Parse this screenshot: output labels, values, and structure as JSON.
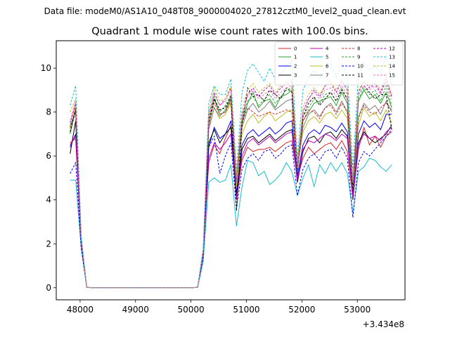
{
  "figure": {
    "suptitle": "Data file: modeM0/AS1A10_048T08_9000004020_27812cztM0_level2_quad_clean.evt"
  },
  "chart_data": {
    "type": "line",
    "title": "Quadrant 1 module wise count rates with 100.0s bins.",
    "xlabel": "",
    "ylabel": "",
    "x_offset_label": "+3.434e8",
    "xlim": [
      47570,
      53860
    ],
    "ylim": [
      -0.55,
      11.25
    ],
    "x_ticks": [
      48000,
      49000,
      50000,
      51000,
      52000,
      53000
    ],
    "y_ticks": [
      0,
      2,
      4,
      6,
      8,
      10
    ],
    "grid": false,
    "legend": {
      "placement": "top-right",
      "columns": 4
    },
    "x": [
      47820,
      47920,
      48020,
      48120,
      48220,
      48320,
      48420,
      48520,
      48620,
      48720,
      48820,
      48920,
      49020,
      49120,
      49220,
      49320,
      49420,
      49520,
      49620,
      49720,
      49820,
      49920,
      50020,
      50120,
      50220,
      50320,
      50420,
      50520,
      50620,
      50720,
      50820,
      50920,
      51020,
      51120,
      51220,
      51320,
      51420,
      51520,
      51620,
      51720,
      51820,
      51920,
      52020,
      52120,
      52220,
      52320,
      52420,
      52520,
      52620,
      52720,
      52820,
      52920,
      53020,
      53120,
      53220,
      53320,
      53420,
      53520,
      53620
    ],
    "series": [
      {
        "name": "0",
        "color": "#d62728",
        "dash": "solid",
        "values": [
          6.6,
          6.8,
          2.0,
          0.02,
          0,
          0,
          0,
          0,
          0,
          0,
          0,
          0,
          0,
          0,
          0,
          0,
          0,
          0,
          0,
          0,
          0,
          0,
          0,
          0.02,
          1.5,
          5.7,
          6.5,
          6.1,
          6.8,
          7.4,
          4.0,
          5.8,
          6.4,
          6.2,
          6.3,
          6.3,
          6.4,
          6.2,
          6.4,
          6.6,
          6.7,
          5.0,
          5.9,
          6.4,
          6.1,
          6.3,
          6.5,
          6.6,
          6.3,
          6.7,
          6.2,
          4.1,
          6.3,
          7.3,
          6.5,
          6.9,
          6.4,
          6.9,
          7.1
        ]
      },
      {
        "name": "1",
        "color": "#2ca02c",
        "dash": "solid",
        "values": [
          7.0,
          8.1,
          2.2,
          0.02,
          0,
          0,
          0,
          0,
          0,
          0,
          0,
          0,
          0,
          0,
          0,
          0,
          0,
          0,
          0,
          0,
          0,
          0,
          0,
          0.02,
          1.7,
          7.4,
          8.6,
          7.9,
          8.0,
          8.6,
          4.7,
          7.5,
          8.4,
          8.9,
          8.2,
          8.5,
          8.6,
          8.2,
          8.7,
          8.8,
          9.0,
          5.3,
          7.6,
          8.0,
          8.4,
          8.5,
          8.6,
          8.7,
          8.3,
          8.9,
          8.4,
          4.6,
          8.5,
          9.0,
          8.6,
          8.8,
          8.4,
          8.9,
          8.2
        ]
      },
      {
        "name": "2",
        "color": "#0000ff",
        "dash": "solid",
        "values": [
          6.4,
          7.0,
          2.0,
          0.02,
          0,
          0,
          0,
          0,
          0,
          0,
          0,
          0,
          0,
          0,
          0,
          0,
          0,
          0,
          0,
          0,
          0,
          0,
          0,
          0.02,
          1.6,
          6.4,
          7.3,
          6.8,
          7.0,
          7.6,
          4.3,
          6.5,
          7.0,
          7.2,
          6.9,
          7.1,
          7.3,
          7.0,
          7.2,
          7.5,
          7.6,
          5.1,
          6.5,
          7.0,
          7.2,
          7.0,
          7.4,
          7.3,
          7.1,
          7.5,
          7.1,
          4.2,
          7.0,
          7.6,
          7.3,
          7.5,
          7.2,
          7.9,
          7.9
        ]
      },
      {
        "name": "3",
        "color": "#000000",
        "dash": "solid",
        "values": [
          6.1,
          7.6,
          2.0,
          0.02,
          0,
          0,
          0,
          0,
          0,
          0,
          0,
          0,
          0,
          0,
          0,
          0,
          0,
          0,
          0,
          0,
          0,
          0,
          0,
          0.02,
          1.5,
          6.6,
          7.2,
          6.6,
          7.0,
          7.3,
          4.2,
          6.3,
          6.8,
          6.9,
          6.6,
          6.8,
          7.0,
          6.7,
          6.9,
          7.1,
          7.2,
          4.8,
          6.2,
          6.8,
          6.9,
          6.6,
          7.0,
          7.1,
          6.8,
          7.2,
          6.9,
          4.0,
          6.6,
          7.1,
          6.8,
          6.6,
          6.8,
          7.0,
          7.4
        ]
      },
      {
        "name": "4",
        "color": "#bf00bf",
        "dash": "solid",
        "values": [
          6.5,
          6.9,
          2.0,
          0.02,
          0,
          0,
          0,
          0,
          0,
          0,
          0,
          0,
          0,
          0,
          0,
          0,
          0,
          0,
          0,
          0,
          0,
          0,
          0,
          0.02,
          1.5,
          5.9,
          6.6,
          6.3,
          6.6,
          7.0,
          4.1,
          6.0,
          6.6,
          6.8,
          6.5,
          6.7,
          6.9,
          6.6,
          6.8,
          7.0,
          7.1,
          4.9,
          6.3,
          6.7,
          6.6,
          6.8,
          7.0,
          6.9,
          6.7,
          7.0,
          6.8,
          4.1,
          6.5,
          7.0,
          6.8,
          6.9,
          6.7,
          7.1,
          7.3
        ]
      },
      {
        "name": "5",
        "color": "#17becf",
        "dash": "solid",
        "values": [
          4.9,
          4.9,
          1.8,
          0.02,
          0,
          0,
          0,
          0,
          0,
          0,
          0,
          0,
          0,
          0,
          0,
          0,
          0,
          0,
          0,
          0,
          0,
          0,
          0,
          0.02,
          1.2,
          4.8,
          5.0,
          4.8,
          4.9,
          5.6,
          2.8,
          4.6,
          5.8,
          5.7,
          5.1,
          5.3,
          4.7,
          4.9,
          5.2,
          5.7,
          5.3,
          4.2,
          5.0,
          5.6,
          4.6,
          5.6,
          5.2,
          5.7,
          5.3,
          5.7,
          5.2,
          3.4,
          5.3,
          5.5,
          5.9,
          5.8,
          5.5,
          5.3,
          5.6
        ]
      },
      {
        "name": "6",
        "color": "#bcbd22",
        "dash": "solid",
        "values": [
          7.2,
          8.3,
          2.1,
          0.02,
          0,
          0,
          0,
          0,
          0,
          0,
          0,
          0,
          0,
          0,
          0,
          0,
          0,
          0,
          0,
          0,
          0,
          0,
          0,
          0.02,
          1.6,
          7.3,
          8.2,
          7.7,
          7.9,
          8.4,
          4.6,
          7.0,
          7.6,
          7.9,
          7.5,
          7.8,
          8.0,
          7.6,
          7.8,
          8.0,
          8.1,
          5.4,
          7.1,
          7.6,
          7.8,
          7.5,
          7.9,
          8.0,
          7.7,
          8.1,
          7.7,
          4.4,
          7.4,
          8.2,
          7.8,
          8.0,
          7.6,
          8.1,
          7.5
        ]
      },
      {
        "name": "7",
        "color": "#7f7f7f",
        "dash": "solid",
        "values": [
          7.3,
          8.0,
          2.1,
          0.02,
          0,
          0,
          0,
          0,
          0,
          0,
          0,
          0,
          0,
          0,
          0,
          0,
          0,
          0,
          0,
          0,
          0,
          0,
          0,
          0.02,
          1.6,
          7.2,
          8.2,
          7.8,
          8.1,
          8.7,
          4.8,
          7.3,
          8.1,
          8.4,
          8.0,
          8.2,
          8.5,
          8.1,
          8.3,
          8.5,
          8.6,
          5.5,
          7.3,
          7.9,
          8.1,
          7.8,
          8.2,
          8.4,
          8.0,
          8.5,
          8.0,
          4.5,
          7.8,
          8.4,
          8.1,
          8.3,
          7.9,
          8.5,
          8.0
        ]
      },
      {
        "name": "8",
        "color": "#d62728",
        "dash": "dashed",
        "values": [
          7.3,
          8.2,
          2.2,
          0.02,
          0,
          0,
          0,
          0,
          0,
          0,
          0,
          0,
          0,
          0,
          0,
          0,
          0,
          0,
          0,
          0,
          0,
          0,
          0,
          0.02,
          1.7,
          7.5,
          8.4,
          7.9,
          8.0,
          8.5,
          4.9,
          7.5,
          8.2,
          8.0,
          7.8,
          7.9,
          8.0,
          7.9,
          8.0,
          8.1,
          8.0,
          5.6,
          7.6,
          8.1,
          8.0,
          7.7,
          8.2,
          8.3,
          7.9,
          8.4,
          8.0,
          4.7,
          7.7,
          8.3,
          8.0,
          7.9,
          8.2,
          8.4,
          8.1
        ]
      },
      {
        "name": "9",
        "color": "#2ca02c",
        "dash": "dashed",
        "values": [
          7.4,
          8.0,
          2.2,
          0.02,
          0,
          0,
          0,
          0,
          0,
          0,
          0,
          0,
          0,
          0,
          0,
          0,
          0,
          0,
          0,
          0,
          0,
          0,
          0,
          0.02,
          1.7,
          7.6,
          8.7,
          8.0,
          8.3,
          8.8,
          4.9,
          7.6,
          8.5,
          8.7,
          8.3,
          8.6,
          8.8,
          8.4,
          8.7,
          9.0,
          9.1,
          5.5,
          7.8,
          8.2,
          8.6,
          8.4,
          8.8,
          8.9,
          8.5,
          9.1,
          8.6,
          4.7,
          8.6,
          9.1,
          8.8,
          9.0,
          8.5,
          9.2,
          8.3
        ]
      },
      {
        "name": "10",
        "color": "#0000ff",
        "dash": "dashed",
        "values": [
          5.2,
          5.7,
          1.8,
          0.02,
          0,
          0,
          0,
          0,
          0,
          0,
          0,
          0,
          0,
          0,
          0,
          0,
          0,
          0,
          0,
          0,
          0,
          0,
          0,
          0.02,
          1.4,
          6.4,
          6.9,
          5.2,
          6.0,
          6.6,
          3.6,
          5.4,
          5.9,
          6.1,
          5.8,
          6.2,
          6.3,
          5.9,
          6.1,
          6.4,
          6.5,
          4.2,
          5.4,
          5.9,
          6.1,
          5.8,
          6.2,
          6.3,
          5.9,
          6.4,
          5.9,
          3.2,
          5.7,
          6.2,
          6.0,
          6.3,
          6.6,
          6.9,
          7.2
        ]
      },
      {
        "name": "11",
        "color": "#000000",
        "dash": "dashed",
        "values": [
          7.1,
          8.1,
          2.1,
          0.02,
          0,
          0,
          0,
          0,
          0,
          0,
          0,
          0,
          0,
          0,
          0,
          0,
          0,
          0,
          0,
          0,
          0,
          0,
          0,
          0.02,
          1.6,
          7.6,
          8.6,
          8.1,
          8.2,
          8.7,
          3.5,
          7.4,
          9.1,
          8.7,
          8.8,
          8.5,
          9.0,
          8.8,
          8.6,
          9.1,
          8.9,
          5.4,
          7.8,
          8.4,
          8.7,
          8.3,
          8.6,
          8.9,
          8.5,
          9.0,
          8.6,
          4.4,
          8.8,
          9.2,
          8.9,
          8.6,
          8.8,
          8.8,
          7.2
        ]
      },
      {
        "name": "12",
        "color": "#bf00bf",
        "dash": "dashed",
        "values": [
          7.5,
          8.4,
          2.2,
          0.02,
          0,
          0,
          0,
          0,
          0,
          0,
          0,
          0,
          0,
          0,
          0,
          0,
          0,
          0,
          0,
          0,
          0,
          0,
          0,
          0.02,
          1.7,
          7.8,
          8.9,
          8.3,
          8.6,
          9.1,
          5.0,
          7.8,
          8.8,
          9.1,
          8.7,
          9.0,
          9.2,
          8.8,
          9.1,
          9.3,
          9.4,
          5.6,
          8.0,
          8.6,
          9.0,
          8.7,
          9.2,
          9.3,
          8.9,
          9.4,
          9.0,
          4.8,
          8.9,
          9.4,
          9.1,
          9.3,
          8.9,
          9.5,
          8.7
        ]
      },
      {
        "name": "13",
        "color": "#17becf",
        "dash": "dashed",
        "values": [
          8.3,
          9.2,
          2.4,
          0.02,
          0,
          0,
          0,
          0,
          0,
          0,
          0,
          0,
          0,
          0,
          0,
          0,
          0,
          0,
          0,
          0,
          0,
          0,
          0,
          0.02,
          1.8,
          8.4,
          9.2,
          8.8,
          8.8,
          9.5,
          5.3,
          8.9,
          9.9,
          10.2,
          9.8,
          9.4,
          10.0,
          9.5,
          9.7,
          10.1,
          10.3,
          5.9,
          9.0,
          9.6,
          9.9,
          9.5,
          10.0,
          10.2,
          9.6,
          10.2,
          9.7,
          5.4,
          9.7,
          10.2,
          9.9,
          10.1,
          9.8,
          10.6,
          9.3
        ]
      },
      {
        "name": "14",
        "color": "#bcbd22",
        "dash": "dashed",
        "values": [
          8.0,
          8.6,
          2.3,
          0.02,
          0,
          0,
          0,
          0,
          0,
          0,
          0,
          0,
          0,
          0,
          0,
          0,
          0,
          0,
          0,
          0,
          0,
          0,
          0,
          0.02,
          1.7,
          8.1,
          9.1,
          8.5,
          8.6,
          9.2,
          5.1,
          8.1,
          9.0,
          9.3,
          8.9,
          9.1,
          9.3,
          8.9,
          9.2,
          9.4,
          9.5,
          5.7,
          8.2,
          8.8,
          9.1,
          8.8,
          9.2,
          9.4,
          9.0,
          9.5,
          9.1,
          4.9,
          9.0,
          9.4,
          9.2,
          9.4,
          9.0,
          9.6,
          8.8
        ]
      },
      {
        "name": "15",
        "color": "#e377c2",
        "dash": "dashed",
        "values": [
          7.6,
          8.5,
          2.2,
          0.02,
          0,
          0,
          0,
          0,
          0,
          0,
          0,
          0,
          0,
          0,
          0,
          0,
          0,
          0,
          0,
          0,
          0,
          0,
          0,
          0.02,
          1.7,
          7.9,
          8.8,
          8.3,
          8.5,
          9.0,
          5.0,
          7.9,
          8.7,
          9.0,
          8.6,
          8.8,
          9.0,
          8.6,
          8.9,
          9.1,
          9.2,
          5.5,
          8.0,
          8.6,
          8.9,
          8.6,
          9.0,
          9.1,
          8.7,
          9.2,
          8.8,
          4.8,
          8.8,
          9.2,
          9.0,
          9.2,
          8.8,
          9.4,
          8.6
        ]
      }
    ]
  }
}
